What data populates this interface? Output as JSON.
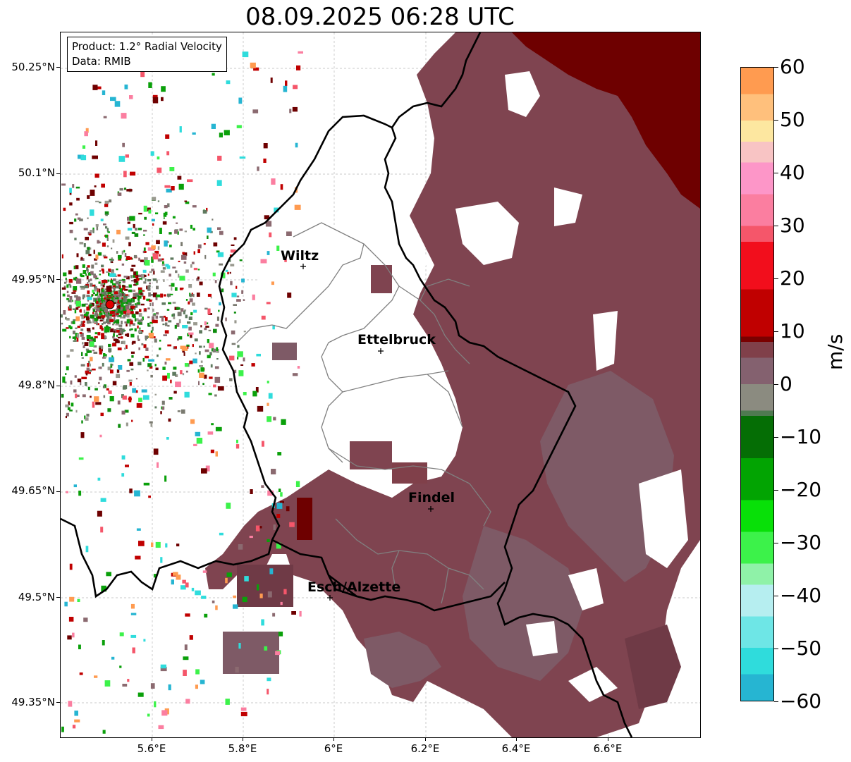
{
  "title": "08.09.2025 06:28 UTC",
  "info": {
    "product": "Product: 1.2° Radial Velocity",
    "data": "Data: RMIB"
  },
  "lat_labels": [
    "50.25°N",
    "50.1°N",
    "49.95°N",
    "49.8°N",
    "49.65°N",
    "49.5°N",
    "49.35°N"
  ],
  "lon_labels": [
    "5.6°E",
    "5.8°E",
    "6°E",
    "6.2°E",
    "6.4°E",
    "6.6°E"
  ],
  "cities": [
    {
      "name": "Wiltz"
    },
    {
      "name": "Ettelbruck"
    },
    {
      "name": "Findel"
    },
    {
      "name": "Esch/Alzette"
    }
  ],
  "colorbar": {
    "unit": "m/s",
    "range": [
      -60,
      60
    ],
    "tick_labels": [
      "60",
      "50",
      "40",
      "30",
      "20",
      "10",
      "0",
      "−10",
      "−20",
      "−30",
      "−40",
      "−50",
      "−60"
    ],
    "stops": [
      {
        "v": -60,
        "color": "#2a7fc4"
      },
      {
        "v": -55,
        "color": "#26b5d2"
      },
      {
        "v": -50,
        "color": "#2fdcdc"
      },
      {
        "v": -44,
        "color": "#6ee6e6"
      },
      {
        "v": -38,
        "color": "#b6eef0"
      },
      {
        "v": -34,
        "color": "#8ff2a8"
      },
      {
        "v": -28,
        "color": "#3cf24a"
      },
      {
        "v": -22,
        "color": "#08e008"
      },
      {
        "v": -14,
        "color": "#02a402"
      },
      {
        "v": -6,
        "color": "#056e05"
      },
      {
        "v": -5,
        "color": "#4f7a50"
      },
      {
        "v": 0,
        "color": "#8b8b80"
      },
      {
        "v": 5,
        "color": "#84616f"
      },
      {
        "v": 8,
        "color": "#80404a"
      },
      {
        "v": 9,
        "color": "#7a0000"
      },
      {
        "v": 18,
        "color": "#c00000"
      },
      {
        "v": 27,
        "color": "#f20e1c"
      },
      {
        "v": 30,
        "color": "#f5566a"
      },
      {
        "v": 36,
        "color": "#fb7ea0"
      },
      {
        "v": 42,
        "color": "#fd96c8"
      },
      {
        "v": 46,
        "color": "#f8c4c4"
      },
      {
        "v": 50,
        "color": "#fde7a0"
      },
      {
        "v": 55,
        "color": "#ffc07c"
      },
      {
        "v": 60,
        "color": "#ff9b50"
      }
    ]
  },
  "colors": {
    "approaching_strong": "#6e0000",
    "receding_weak": "#7f4450",
    "receding_gray": "#7e5a66",
    "near_zero": "#7a7a70",
    "green": "#0c8c0c",
    "radar_site": "#e00000",
    "country_border": "#000000",
    "canton_border": "#808080"
  }
}
